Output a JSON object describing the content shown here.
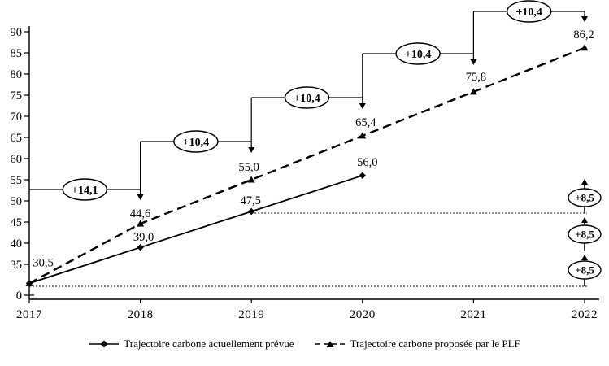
{
  "colors": {
    "ink": "#000000",
    "background": "#ffffff"
  },
  "chart_data": {
    "type": "line",
    "title": "",
    "xlabel": "",
    "ylabel": "",
    "x_categories": [
      "2017",
      "2018",
      "2019",
      "2020",
      "2021",
      "2022"
    ],
    "y_tick_labels": [
      "90",
      "85",
      "80",
      "75",
      "70",
      "65",
      "60",
      "55",
      "50",
      "45",
      "40",
      "35",
      "0"
    ],
    "y_tick_values": [
      90,
      85,
      80,
      75,
      70,
      65,
      60,
      55,
      50,
      45,
      40,
      35,
      0
    ],
    "y_axis_note": "axis truncated: 0 shown at bottom of a 35-90 linear scale",
    "series": [
      {
        "name": "Trajectoire carbone actuellement prévue",
        "line_style": "solid",
        "marker": "diamond",
        "x": [
          "2017",
          "2018",
          "2019",
          "2020"
        ],
        "values": [
          30.5,
          39.0,
          47.5,
          56.0
        ],
        "point_labels": [
          "30,5",
          "39,0",
          "47,5",
          "56,0"
        ]
      },
      {
        "name": "Trajectoire carbone proposée par le PLF",
        "line_style": "dashed",
        "marker": "triangle",
        "x": [
          "2017",
          "2018",
          "2019",
          "2020",
          "2021",
          "2022"
        ],
        "values": [
          30.5,
          44.6,
          55.0,
          65.4,
          75.8,
          86.2
        ],
        "point_labels": [
          "",
          "44,6",
          "55,0",
          "65,4",
          "75,8",
          "86,2"
        ]
      }
    ],
    "step_annotations": [
      {
        "label": "+14,1",
        "from_x": "2017",
        "to_x": "2018"
      },
      {
        "label": "+10,4",
        "from_x": "2018",
        "to_x": "2019"
      },
      {
        "label": "+10,4",
        "from_x": "2019",
        "to_x": "2020"
      },
      {
        "label": "+10,4",
        "from_x": "2020",
        "to_x": "2021"
      },
      {
        "label": "+10,4",
        "from_x": "2021",
        "to_x": "2022"
      }
    ],
    "right_annotations": [
      {
        "label": "+8,5"
      },
      {
        "label": "+8,5"
      },
      {
        "label": "+8,5"
      }
    ],
    "dotted_reference_levels": [
      47.5,
      30.5
    ],
    "legend": [
      {
        "label": "Trajectoire carbone actuellement prévue",
        "marker": "diamond",
        "line_style": "solid"
      },
      {
        "label": "Trajectoire carbone proposée par le PLF",
        "marker": "triangle",
        "line_style": "dashed"
      }
    ]
  }
}
